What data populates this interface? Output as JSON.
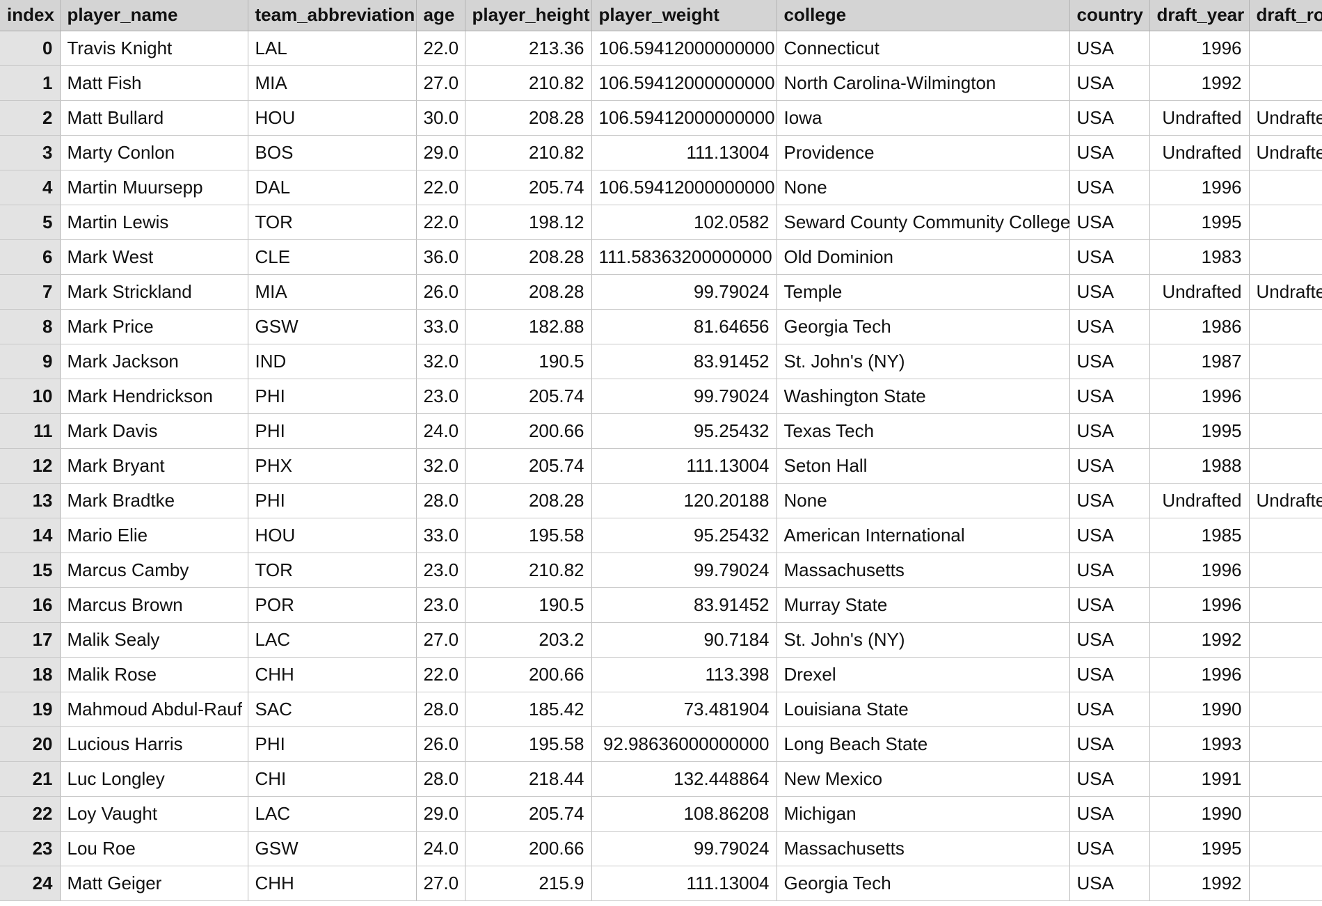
{
  "columns": [
    {
      "key": "index",
      "label": "index",
      "align": "num",
      "width": 86
    },
    {
      "key": "player_name",
      "label": "player_name",
      "align": "txt",
      "width": 270
    },
    {
      "key": "team_abbreviation",
      "label": "team_abbreviation",
      "align": "txt",
      "width": 242
    },
    {
      "key": "age",
      "label": "age",
      "align": "txt",
      "width": 70
    },
    {
      "key": "player_height",
      "label": "player_height",
      "align": "num",
      "width": 182
    },
    {
      "key": "player_weight",
      "label": "player_weight",
      "align": "num",
      "width": 266
    },
    {
      "key": "college",
      "label": "college",
      "align": "txt",
      "width": 421
    },
    {
      "key": "country",
      "label": "country",
      "align": "txt",
      "width": 115
    },
    {
      "key": "draft_year",
      "label": "draft_year",
      "align": "num",
      "width": 143
    },
    {
      "key": "draft_round",
      "label": "draft_ro",
      "align": "txt",
      "width": 142
    }
  ],
  "rows": [
    [
      "0",
      "Travis Knight",
      "LAL",
      "22.0",
      "213.36",
      "106.59412000000000",
      "Connecticut",
      "USA",
      "1996",
      ""
    ],
    [
      "1",
      "Matt Fish",
      "MIA",
      "27.0",
      "210.82",
      "106.59412000000000",
      "North Carolina-Wilmington",
      "USA",
      "1992",
      ""
    ],
    [
      "2",
      "Matt Bullard",
      "HOU",
      "30.0",
      "208.28",
      "106.59412000000000",
      "Iowa",
      "USA",
      "Undrafted",
      "Undrafted"
    ],
    [
      "3",
      "Marty Conlon",
      "BOS",
      "29.0",
      "210.82",
      "111.13004",
      "Providence",
      "USA",
      "Undrafted",
      "Undrafted"
    ],
    [
      "4",
      "Martin Muursepp",
      "DAL",
      "22.0",
      "205.74",
      "106.59412000000000",
      "None",
      "USA",
      "1996",
      ""
    ],
    [
      "5",
      "Martin Lewis",
      "TOR",
      "22.0",
      "198.12",
      "102.0582",
      "Seward County Community College",
      "USA",
      "1995",
      ""
    ],
    [
      "6",
      "Mark West",
      "CLE",
      "36.0",
      "208.28",
      "111.58363200000000",
      "Old Dominion",
      "USA",
      "1983",
      ""
    ],
    [
      "7",
      "Mark Strickland",
      "MIA",
      "26.0",
      "208.28",
      "99.79024",
      "Temple",
      "USA",
      "Undrafted",
      "Undrafted"
    ],
    [
      "8",
      "Mark Price",
      "GSW",
      "33.0",
      "182.88",
      "81.64656",
      "Georgia Tech",
      "USA",
      "1986",
      ""
    ],
    [
      "9",
      "Mark Jackson",
      "IND",
      "32.0",
      "190.5",
      "83.91452",
      "St. John's (NY)",
      "USA",
      "1987",
      ""
    ],
    [
      "10",
      "Mark Hendrickson",
      "PHI",
      "23.0",
      "205.74",
      "99.79024",
      "Washington State",
      "USA",
      "1996",
      ""
    ],
    [
      "11",
      "Mark Davis",
      "PHI",
      "24.0",
      "200.66",
      "95.25432",
      "Texas Tech",
      "USA",
      "1995",
      ""
    ],
    [
      "12",
      "Mark Bryant",
      "PHX",
      "32.0",
      "205.74",
      "111.13004",
      "Seton Hall",
      "USA",
      "1988",
      ""
    ],
    [
      "13",
      "Mark Bradtke",
      "PHI",
      "28.0",
      "208.28",
      "120.20188",
      "None",
      "USA",
      "Undrafted",
      "Undrafted"
    ],
    [
      "14",
      "Mario Elie",
      "HOU",
      "33.0",
      "195.58",
      "95.25432",
      "American International",
      "USA",
      "1985",
      ""
    ],
    [
      "15",
      "Marcus Camby",
      "TOR",
      "23.0",
      "210.82",
      "99.79024",
      "Massachusetts",
      "USA",
      "1996",
      ""
    ],
    [
      "16",
      "Marcus Brown",
      "POR",
      "23.0",
      "190.5",
      "83.91452",
      "Murray State",
      "USA",
      "1996",
      ""
    ],
    [
      "17",
      "Malik Sealy",
      "LAC",
      "27.0",
      "203.2",
      "90.7184",
      "St. John's (NY)",
      "USA",
      "1992",
      ""
    ],
    [
      "18",
      "Malik Rose",
      "CHH",
      "22.0",
      "200.66",
      "113.398",
      "Drexel",
      "USA",
      "1996",
      ""
    ],
    [
      "19",
      "Mahmoud Abdul-Rauf",
      "SAC",
      "28.0",
      "185.42",
      "73.481904",
      "Louisiana State",
      "USA",
      "1990",
      ""
    ],
    [
      "20",
      "Lucious Harris",
      "PHI",
      "26.0",
      "195.58",
      "92.98636000000000",
      "Long Beach State",
      "USA",
      "1993",
      ""
    ],
    [
      "21",
      "Luc Longley",
      "CHI",
      "28.0",
      "218.44",
      "132.448864",
      "New Mexico",
      "USA",
      "1991",
      ""
    ],
    [
      "22",
      "Loy Vaught",
      "LAC",
      "29.0",
      "205.74",
      "108.86208",
      "Michigan",
      "USA",
      "1990",
      ""
    ],
    [
      "23",
      "Lou Roe",
      "GSW",
      "24.0",
      "200.66",
      "99.79024",
      "Massachusetts",
      "USA",
      "1995",
      ""
    ],
    [
      "24",
      "Matt Geiger",
      "CHH",
      "27.0",
      "215.9",
      "111.13004",
      "Georgia Tech",
      "USA",
      "1992",
      ""
    ]
  ]
}
